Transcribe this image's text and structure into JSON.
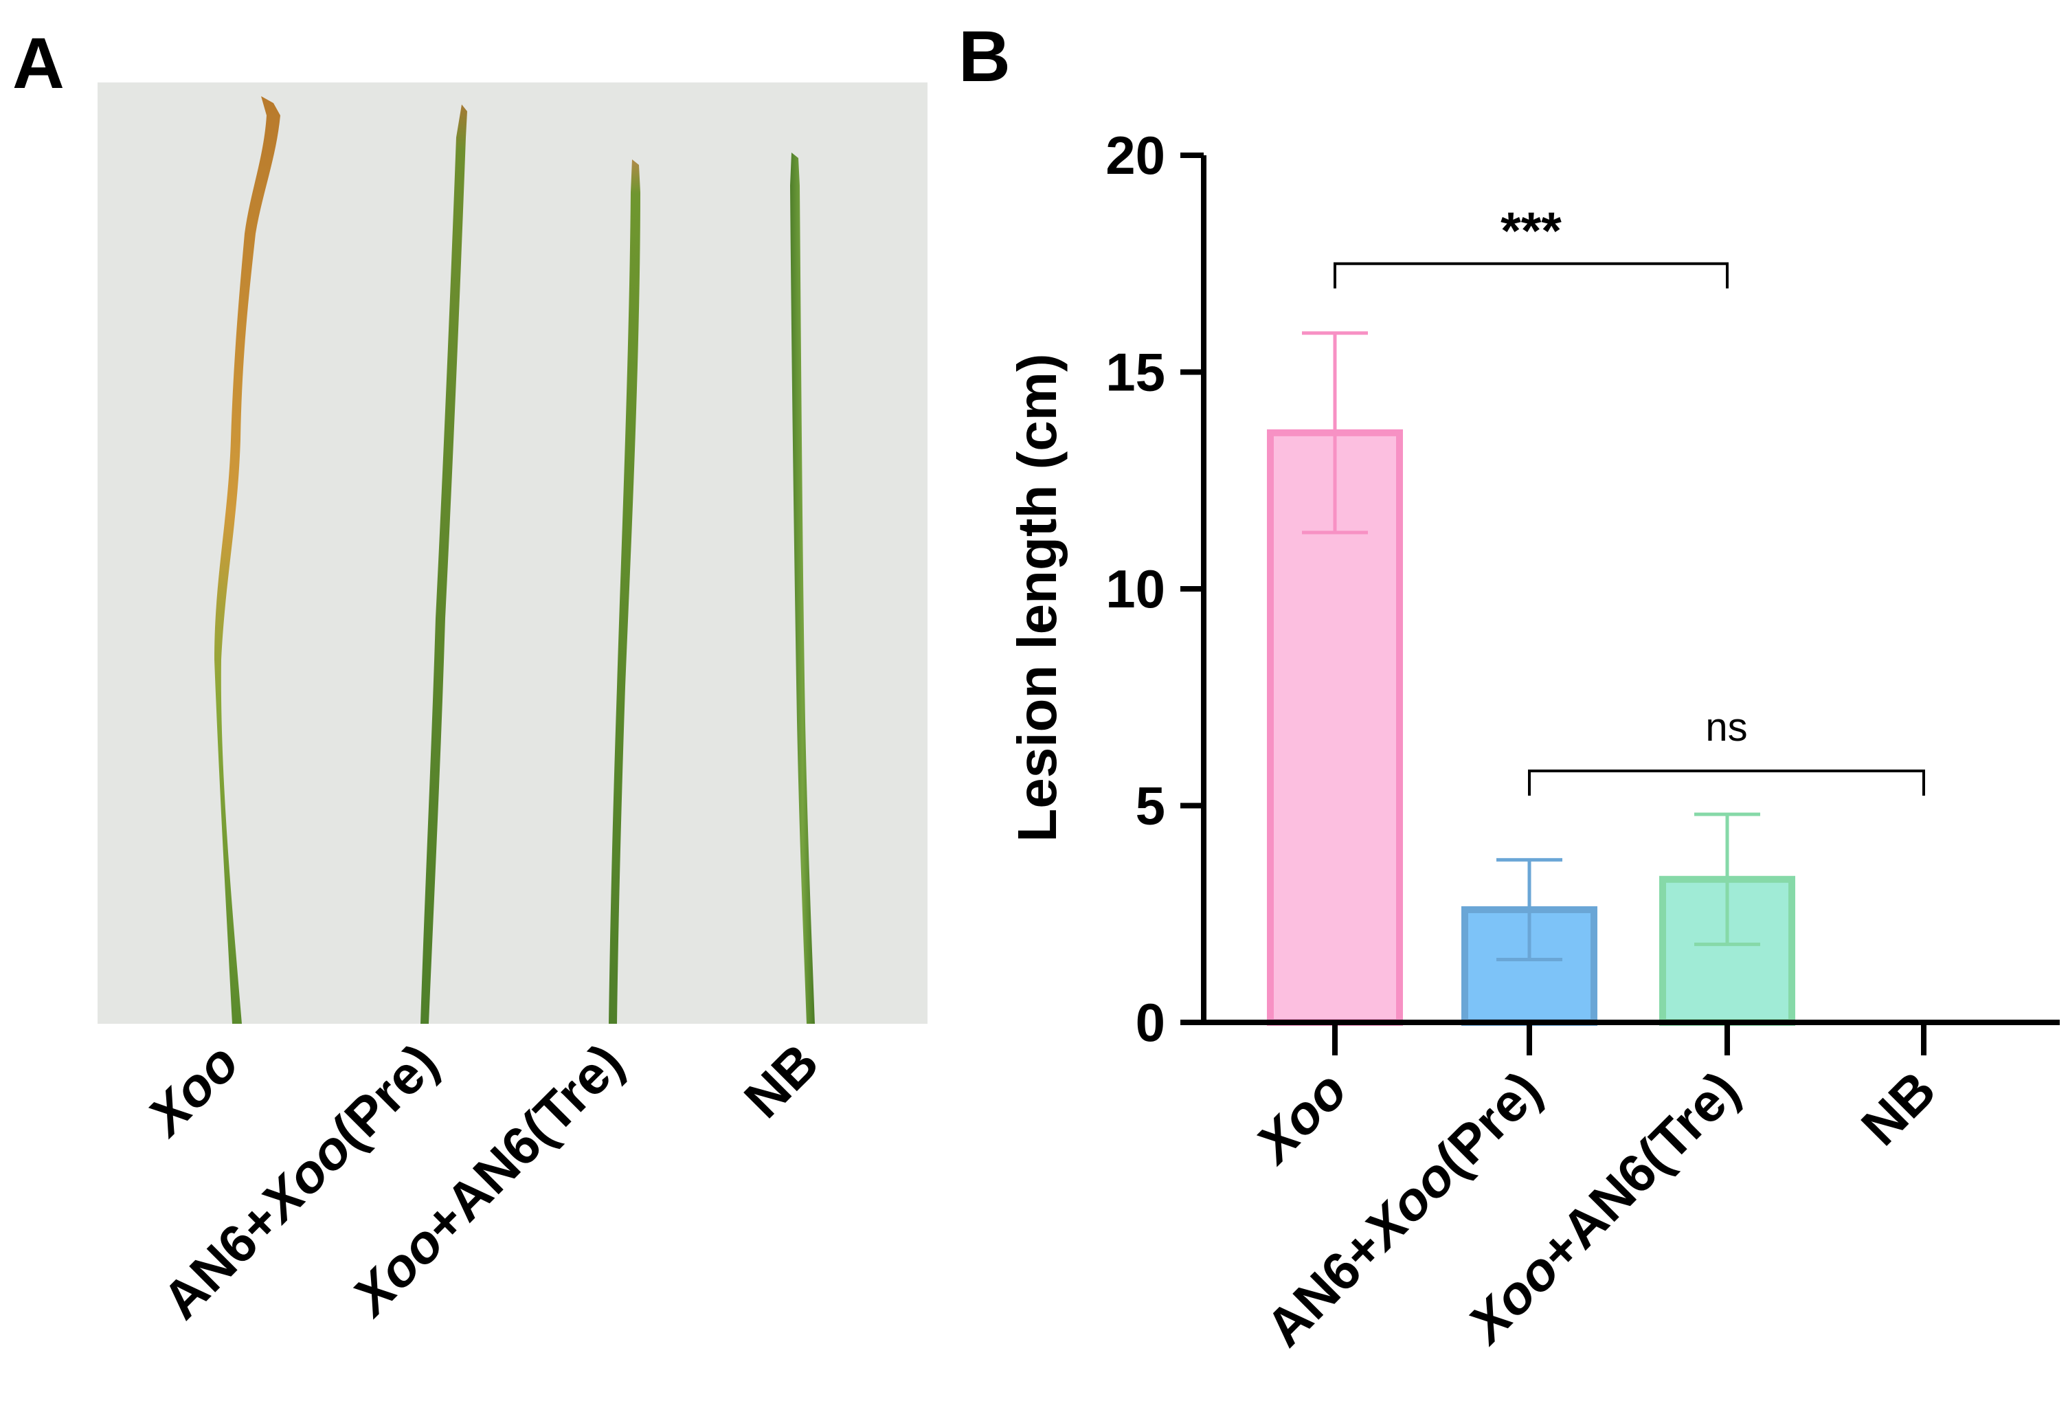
{
  "panels": {
    "a_letter": "A",
    "b_letter": "B"
  },
  "photo": {
    "background_color": "#e4e6e3",
    "labels": [
      {
        "parts": [
          {
            "t": "Xoo",
            "italic": true
          }
        ]
      },
      {
        "parts": [
          {
            "t": "AN6+",
            "italic": false
          },
          {
            "t": "Xoo",
            "italic": true
          },
          {
            "t": "(Pre)",
            "italic": false
          }
        ]
      },
      {
        "parts": [
          {
            "t": "Xoo",
            "italic": true
          },
          {
            "t": "+AN6(Tre)",
            "italic": false
          }
        ]
      },
      {
        "parts": [
          {
            "t": "NB",
            "italic": false
          }
        ]
      }
    ]
  },
  "chart_data": {
    "type": "bar",
    "title": "",
    "xlabel": "",
    "ylabel": "Lesion length (cm)",
    "ylim": [
      0,
      20
    ],
    "yticks": [
      0,
      5,
      10,
      15,
      20
    ],
    "categories": [
      "Xoo",
      "AN6+Xoo(Pre)",
      "Xoo+AN6(Tre)",
      "NB"
    ],
    "category_parts": [
      [
        {
          "t": "Xoo",
          "italic": true
        }
      ],
      [
        {
          "t": "AN6+",
          "italic": false
        },
        {
          "t": "Xoo",
          "italic": true
        },
        {
          "t": "(Pre)",
          "italic": false
        }
      ],
      [
        {
          "t": "Xoo",
          "italic": true
        },
        {
          "t": "+AN6(Tre)",
          "italic": false
        }
      ],
      [
        {
          "t": "NB",
          "italic": false
        }
      ]
    ],
    "values": [
      13.6,
      2.6,
      3.3,
      0
    ],
    "errors": [
      2.3,
      1.15,
      1.5,
      0
    ],
    "fill_colors": [
      "#fcbfe0",
      "#7dc3f8",
      "#a0ebd6",
      "#ffffff"
    ],
    "edge_colors": [
      "#f791c4",
      "#6aa6d6",
      "#86d9a8",
      "#000000"
    ],
    "significance": [
      {
        "from": 0,
        "to": 2,
        "label": "***",
        "y": 17.5
      },
      {
        "from": 1,
        "to": 3,
        "label": "ns",
        "y": 5.8
      }
    ]
  }
}
